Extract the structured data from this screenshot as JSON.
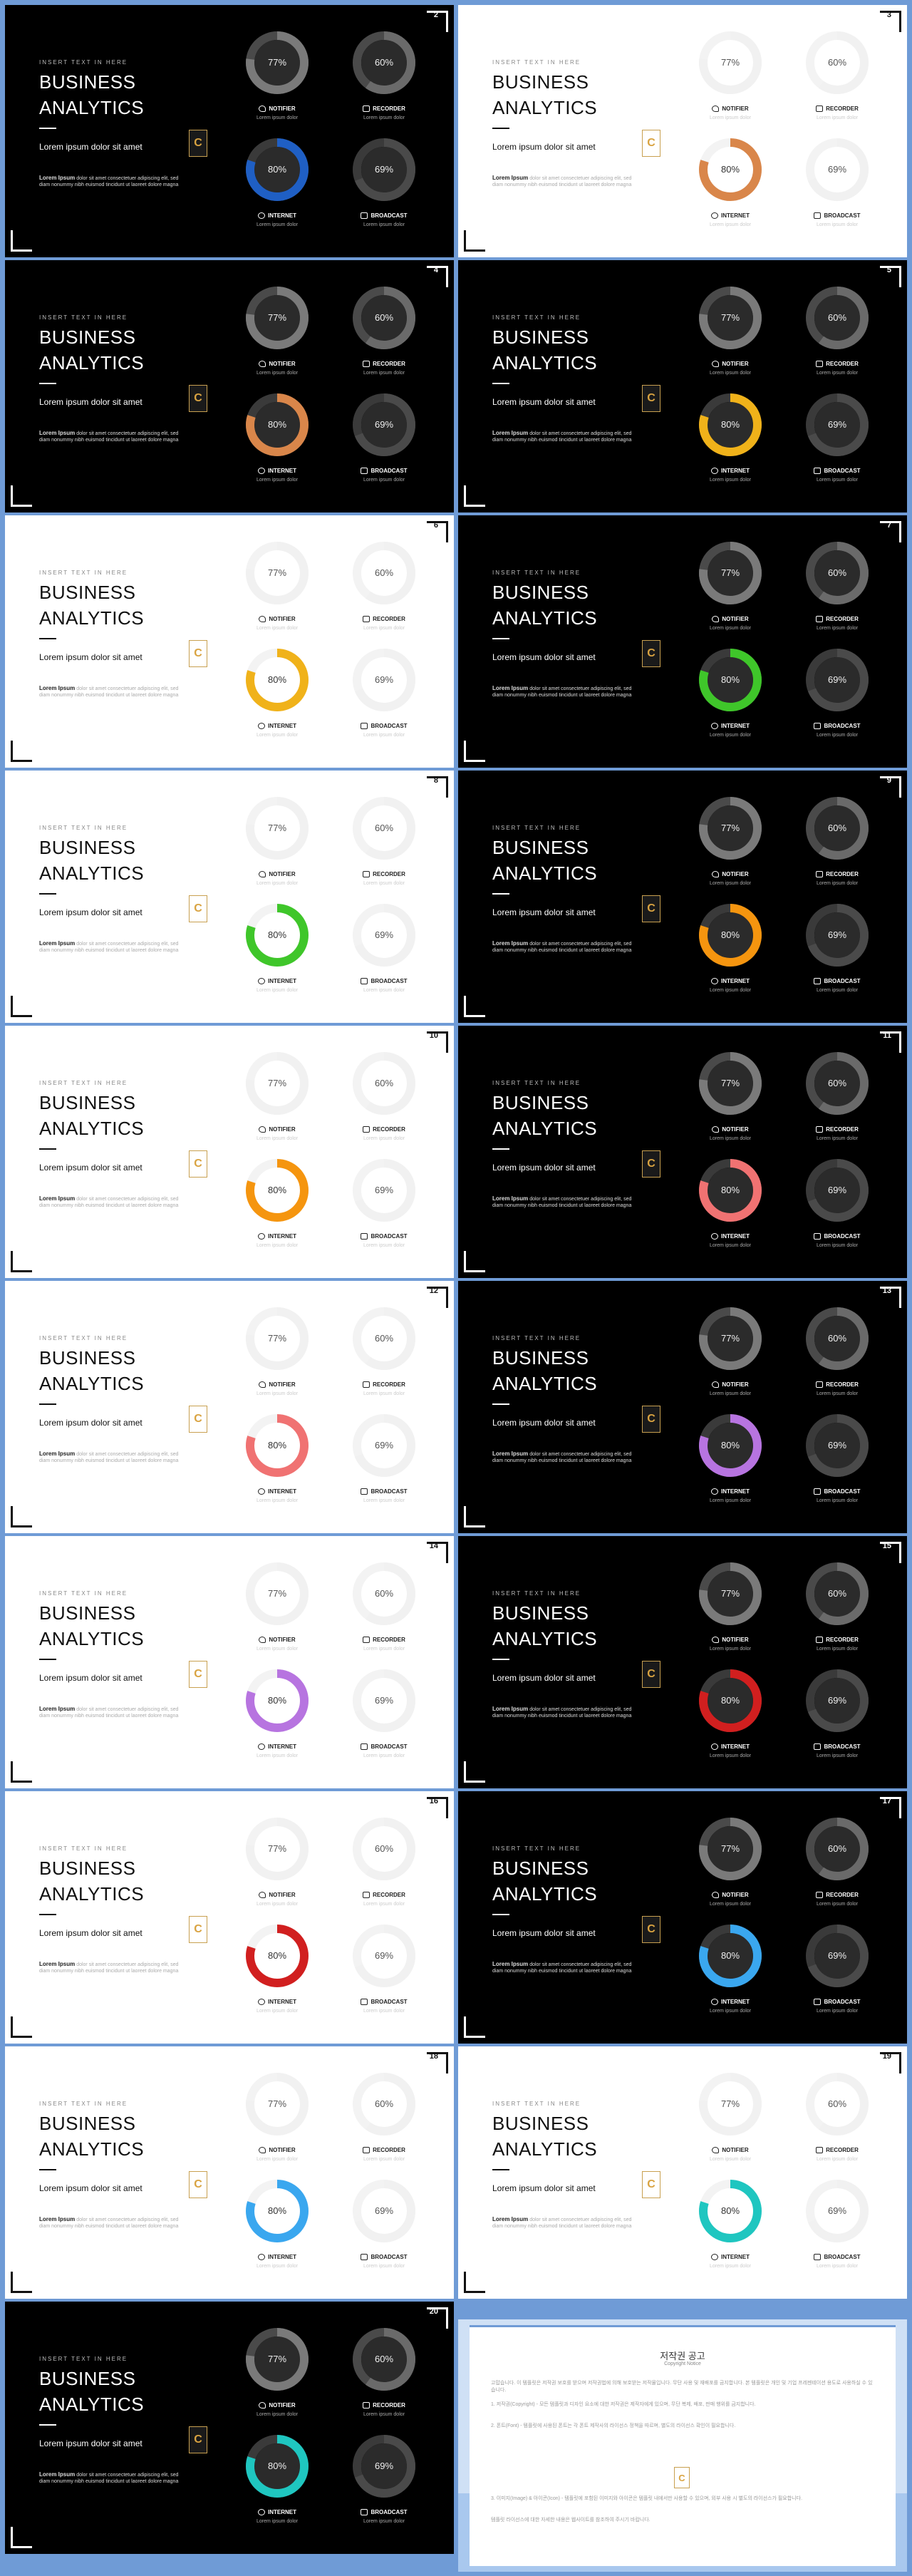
{
  "slide_common": {
    "kicker": "INSERT TEXT IN HERE",
    "title_line1": "BUSINESS",
    "title_line2": "ANALYTICS",
    "subtitle": "Lorem ipsum dolor sit amet",
    "body_bold": "Lorem Ipsum",
    "body_text": "dolor sit amet consectetuer adipiscing elit, sed diam nonummy nibh euismod tincidunt ut laoreet dolore magna",
    "logo_letter": "C",
    "labels": {
      "notifier": "NOTIFIER",
      "recorder": "RECORDER",
      "internet": "INTERNET",
      "broadcast": "BROADCAST",
      "caption_sub": "Lorem ipsum dolor"
    },
    "values": {
      "notifier": 77,
      "recorder": 60,
      "internet": 80,
      "broadcast": 69
    }
  },
  "slides": [
    {
      "num": "2",
      "theme": "dark",
      "accent": "#1f5fc4"
    },
    {
      "num": "3",
      "theme": "light",
      "accent": "#d9864a"
    },
    {
      "num": "4",
      "theme": "dark",
      "accent": "#d9864a"
    },
    {
      "num": "5",
      "theme": "dark",
      "accent": "#f0b21a"
    },
    {
      "num": "6",
      "theme": "light",
      "accent": "#f0b21a"
    },
    {
      "num": "7",
      "theme": "dark",
      "accent": "#3fc62a"
    },
    {
      "num": "8",
      "theme": "light",
      "accent": "#3fc62a"
    },
    {
      "num": "9",
      "theme": "dark",
      "accent": "#f5950f"
    },
    {
      "num": "10",
      "theme": "light",
      "accent": "#f5950f"
    },
    {
      "num": "11",
      "theme": "dark",
      "accent": "#f07272"
    },
    {
      "num": "12",
      "theme": "light",
      "accent": "#f07272"
    },
    {
      "num": "13",
      "theme": "dark",
      "accent": "#b774e0"
    },
    {
      "num": "14",
      "theme": "light",
      "accent": "#b774e0"
    },
    {
      "num": "15",
      "theme": "dark",
      "accent": "#d11f1f"
    },
    {
      "num": "16",
      "theme": "light",
      "accent": "#d11f1f"
    },
    {
      "num": "17",
      "theme": "dark",
      "accent": "#3aa7ef"
    },
    {
      "num": "18",
      "theme": "light",
      "accent": "#3aa7ef"
    },
    {
      "num": "19",
      "theme": "light",
      "accent": "#1fc6c0"
    },
    {
      "num": "20",
      "theme": "dark",
      "accent": "#1fc6c0"
    }
  ],
  "notice": {
    "title": "저작권 공고",
    "subtitle": "Copyright Notice",
    "para1": "고맙습니다. 이 템플릿은 저작권 보호를 받으며 저작권법에 의해 보호받는 저작물입니다. 무단 사용 및 재배포를 금지합니다. 본 템플릿은 개인 및 기업 프레젠테이션 용도로 사용하실 수 있습니다.",
    "para2": "1. 저작권(Copyright) - 모든 템플릿과 디자인 요소에 대한 저작권은 제작자에게 있으며, 무단 복제, 배포, 판매 행위를 금지합니다.",
    "para3": "2. 폰트(Font) - 템플릿에 사용된 폰트는 각 폰트 제작사의 라이선스 정책을 따르며, 별도의 라이선스 확인이 필요합니다.",
    "para4": "3. 이미지(Image) & 아이콘(Icon) - 템플릿에 포함된 이미지와 아이콘은 템플릿 내에서만 사용할 수 있으며, 외부 사용 시 별도의 라이선스가 필요합니다.",
    "para5": "템플릿 라이선스에 대한 자세한 내용은 웹사이트를 참조하여 주시기 바랍니다.",
    "logo_letter": "C"
  }
}
